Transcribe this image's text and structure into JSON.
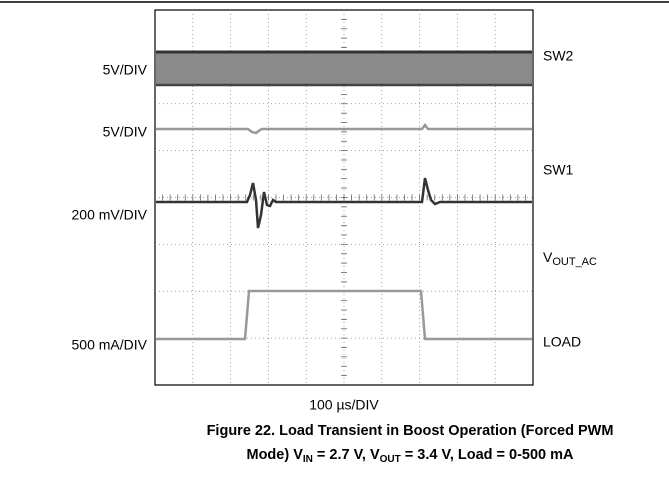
{
  "left_labels": [
    "5V/DIV",
    "5V/DIV",
    "200 mV/DIV",
    "500 mA/DIV"
  ],
  "right_labels": [
    {
      "text": "SW2"
    },
    {
      "text": "SW1"
    },
    {
      "text": "V",
      "sub": "OUT_AC"
    },
    {
      "text": "LOAD"
    }
  ],
  "x_scale": "100 µs/DIV",
  "caption": {
    "line1": "Figure 22. Load Transient in Boost Operation (Forced PWM",
    "line2": [
      "Mode) V",
      "IN",
      " = 2.7 V, V",
      "OUT",
      " = 3.4 V, Load = 0-500 mA"
    ]
  }
}
